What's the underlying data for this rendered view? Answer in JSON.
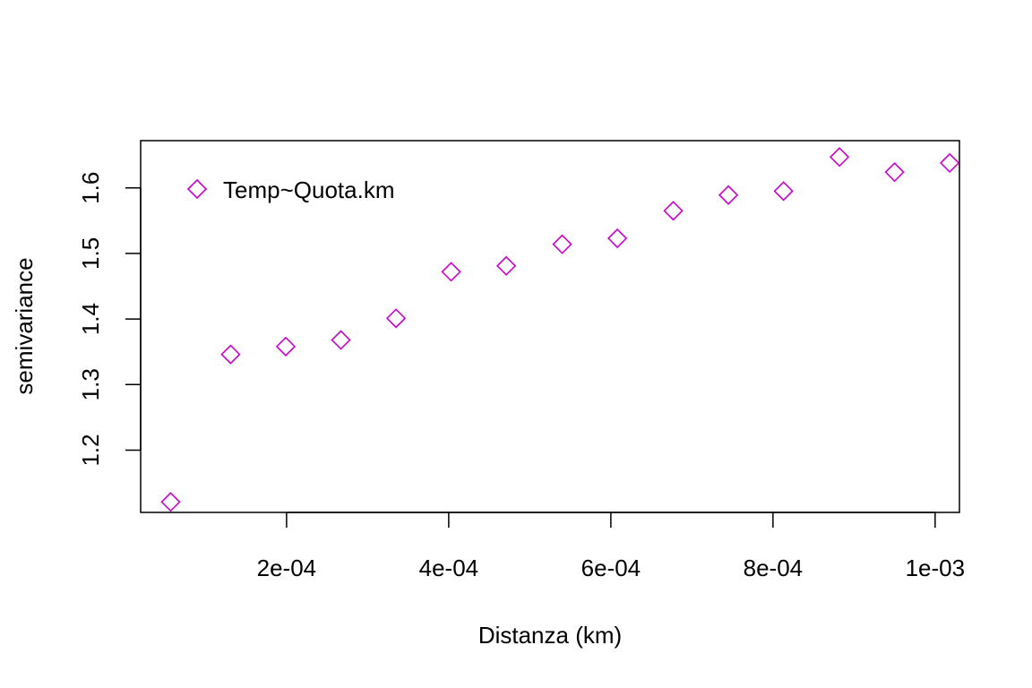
{
  "chart_data": {
    "type": "scatter",
    "title": "",
    "xlabel": "Distanza (km)",
    "ylabel": "semivariance",
    "xlim": [
      2e-05,
      0.00103
    ],
    "ylim": [
      1.105,
      1.672
    ],
    "x_ticks": [
      0.0002,
      0.0004,
      0.0006,
      0.0008,
      0.001
    ],
    "x_tick_labels": [
      "2e-04",
      "4e-04",
      "6e-04",
      "8e-04",
      "1e-03"
    ],
    "y_ticks": [
      1.2,
      1.3,
      1.4,
      1.5,
      1.6
    ],
    "y_tick_labels": [
      "1.2",
      "1.3",
      "1.4",
      "1.5",
      "1.6"
    ],
    "grid": false,
    "legend_position": "top-left",
    "series": [
      {
        "name": "Temp~Quota.km",
        "marker": "diamond-open",
        "color": "#CC00CC",
        "x": [
          5.7e-05,
          0.000131,
          0.000199,
          0.000267,
          0.000335,
          0.000403,
          0.000471,
          0.00054,
          0.000608,
          0.000677,
          0.000745,
          0.000813,
          0.000882,
          0.00095,
          0.001018
        ],
        "y": [
          1.121,
          1.346,
          1.358,
          1.368,
          1.401,
          1.472,
          1.481,
          1.514,
          1.523,
          1.565,
          1.589,
          1.595,
          1.647,
          1.624,
          1.638
        ]
      }
    ]
  }
}
